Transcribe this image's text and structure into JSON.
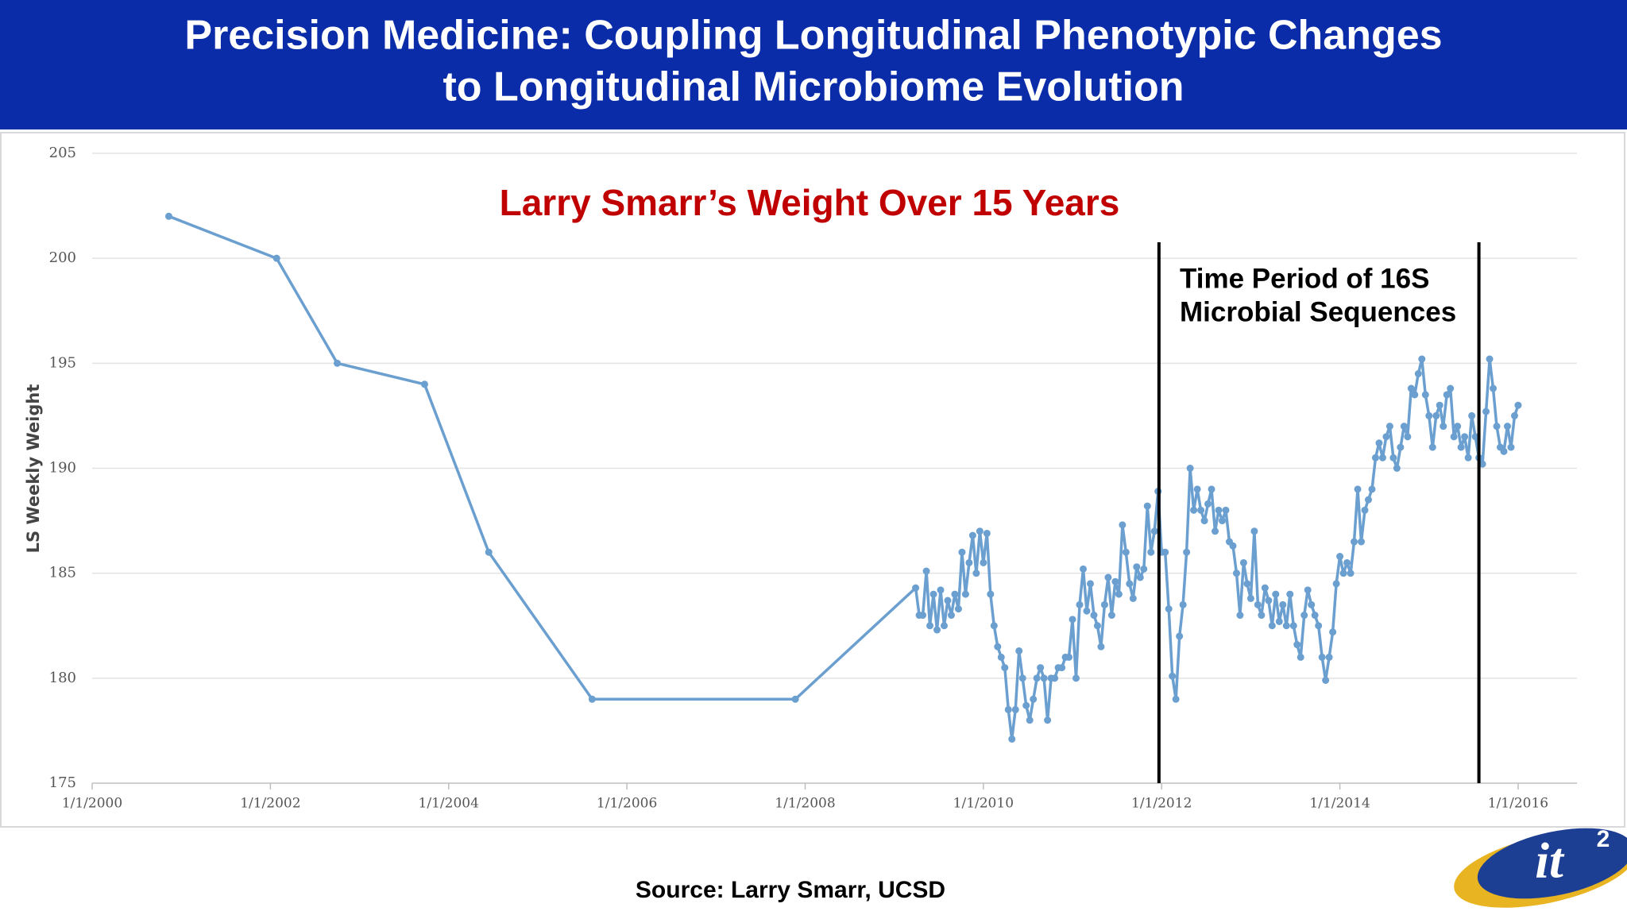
{
  "header": {
    "title_lines": [
      "Precision Medicine: Coupling Longitudinal Phenotypic Changes",
      "to Longitudinal Microbiome Evolution"
    ]
  },
  "chart_data": {
    "type": "line",
    "title": "Larry Smarr’s Weight Over 15 Years",
    "y_label": "LS Weekly Weight",
    "color": "#6a9fd0",
    "grid": true,
    "xlim": [
      2000,
      2016.66
    ],
    "xticks": [
      {
        "value": 2000,
        "label": "1/1/2000"
      },
      {
        "value": 2002,
        "label": "1/1/2002"
      },
      {
        "value": 2004,
        "label": "1/1/2004"
      },
      {
        "value": 2006,
        "label": "1/1/2006"
      },
      {
        "value": 2008,
        "label": "1/1/2008"
      },
      {
        "value": 2010,
        "label": "1/1/2010"
      },
      {
        "value": 2012,
        "label": "1/1/2012"
      },
      {
        "value": 2014,
        "label": "1/1/2014"
      },
      {
        "value": 2016,
        "label": "1/1/2016"
      }
    ],
    "ylim": [
      175,
      205
    ],
    "yticks": [
      175,
      180,
      185,
      190,
      195,
      200,
      205
    ],
    "annotation": {
      "lines": [
        "Time Period of 16S",
        "Microbial Sequences"
      ],
      "x_range": [
        2011.97,
        2015.56
      ]
    },
    "x": [
      2000.86,
      2002.07,
      2002.75,
      2003.73,
      2004.45,
      2005.61,
      2007.89,
      2009.24,
      2009.28,
      2009.32,
      2009.36,
      2009.4,
      2009.44,
      2009.48,
      2009.52,
      2009.56,
      2009.6,
      2009.64,
      2009.68,
      2009.72,
      2009.76,
      2009.8,
      2009.84,
      2009.88,
      2009.92,
      2009.96,
      2010.0,
      2010.04,
      2010.08,
      2010.12,
      2010.16,
      2010.2,
      2010.24,
      2010.28,
      2010.32,
      2010.36,
      2010.4,
      2010.44,
      2010.48,
      2010.52,
      2010.56,
      2010.6,
      2010.64,
      2010.68,
      2010.72,
      2010.76,
      2010.8,
      2010.84,
      2010.88,
      2010.92,
      2010.96,
      2011.0,
      2011.04,
      2011.08,
      2011.12,
      2011.16,
      2011.2,
      2011.24,
      2011.28,
      2011.32,
      2011.36,
      2011.4,
      2011.44,
      2011.48,
      2011.52,
      2011.56,
      2011.6,
      2011.64,
      2011.68,
      2011.72,
      2011.76,
      2011.8,
      2011.84,
      2011.88,
      2011.92,
      2011.96,
      2012.0,
      2012.04,
      2012.08,
      2012.12,
      2012.16,
      2012.2,
      2012.24,
      2012.28,
      2012.32,
      2012.36,
      2012.4,
      2012.44,
      2012.48,
      2012.52,
      2012.56,
      2012.6,
      2012.64,
      2012.68,
      2012.72,
      2012.76,
      2012.8,
      2012.84,
      2012.88,
      2012.92,
      2012.96,
      2013.0,
      2013.04,
      2013.08,
      2013.12,
      2013.16,
      2013.2,
      2013.24,
      2013.28,
      2013.32,
      2013.36,
      2013.4,
      2013.44,
      2013.48,
      2013.52,
      2013.56,
      2013.6,
      2013.64,
      2013.68,
      2013.72,
      2013.76,
      2013.8,
      2013.84,
      2013.88,
      2013.92,
      2013.96,
      2014.0,
      2014.04,
      2014.08,
      2014.12,
      2014.16,
      2014.2,
      2014.24,
      2014.28,
      2014.32,
      2014.36,
      2014.4,
      2014.44,
      2014.48,
      2014.52,
      2014.56,
      2014.6,
      2014.64,
      2014.68,
      2014.72,
      2014.76,
      2014.8,
      2014.84,
      2014.88,
      2014.92,
      2014.96,
      2015.0,
      2015.04,
      2015.08,
      2015.12,
      2015.16,
      2015.2,
      2015.24,
      2015.28,
      2015.32,
      2015.36,
      2015.4,
      2015.44,
      2015.48,
      2015.52,
      2015.56,
      2015.6,
      2015.64,
      2015.68,
      2015.72,
      2015.76,
      2015.8,
      2015.84,
      2015.88,
      2015.92,
      2015.96,
      2016.0
    ],
    "values": [
      202,
      200,
      195,
      194,
      186,
      179,
      179,
      184.3,
      183,
      183,
      185.1,
      182.5,
      184,
      182.3,
      184.2,
      182.5,
      183.7,
      183,
      184,
      183.3,
      186,
      184,
      185.5,
      186.8,
      185,
      187,
      185.5,
      186.9,
      184,
      182.5,
      181.5,
      181,
      180.5,
      178.5,
      177.1,
      178.5,
      181.3,
      180,
      178.7,
      178,
      179,
      180,
      180.5,
      180,
      178,
      180,
      180,
      180.5,
      180.5,
      181,
      181,
      182.8,
      180,
      183.5,
      185.2,
      183.2,
      184.5,
      183,
      182.5,
      181.5,
      183.5,
      184.8,
      183,
      184.6,
      184,
      187.3,
      186,
      184.5,
      183.8,
      185.3,
      184.8,
      185.2,
      188.2,
      186,
      187,
      188.9,
      186,
      186,
      183.3,
      180.1,
      179,
      182,
      183.5,
      186,
      190,
      188,
      189,
      188,
      187.5,
      188.3,
      189,
      187,
      188,
      187.5,
      188,
      186.5,
      186.3,
      185,
      183,
      185.5,
      184.5,
      183.8,
      187,
      183.5,
      183,
      184.3,
      183.7,
      182.5,
      184,
      182.7,
      183.5,
      182.5,
      184,
      182.5,
      181.6,
      181,
      183,
      184.2,
      183.5,
      183,
      182.5,
      181,
      179.9,
      181,
      182.2,
      184.5,
      185.8,
      185,
      185.5,
      185,
      186.5,
      189,
      186.5,
      188,
      188.5,
      189,
      190.5,
      191.2,
      190.5,
      191.5,
      192,
      190.5,
      190,
      191,
      192,
      191.5,
      193.8,
      193.5,
      194.5,
      195.2,
      193.5,
      192.5,
      191,
      192.5,
      193,
      192,
      193.5,
      193.8,
      191.5,
      192,
      191,
      191.5,
      190.5,
      192.5,
      191.5,
      190.5,
      190.2,
      192.7,
      195.2,
      193.8,
      192,
      191,
      190.8,
      192,
      191,
      192.5,
      193
    ]
  },
  "footer": {
    "source": "Source: Larry Smarr, UCSD",
    "logo": {
      "text": "it",
      "superscript": "2"
    }
  }
}
